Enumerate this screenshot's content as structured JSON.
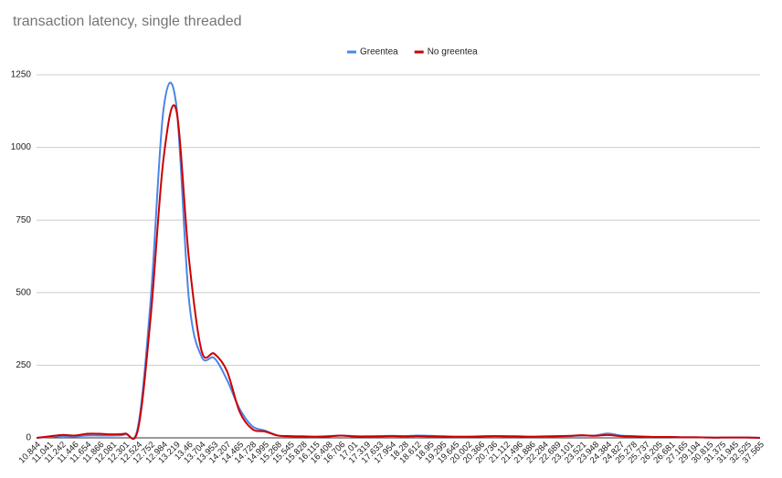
{
  "chart_data": {
    "type": "line",
    "title": "transaction latency, single threaded",
    "categories": [
      "10.844",
      "11.041",
      "11.242",
      "11.446",
      "11.654",
      "11.866",
      "12.081",
      "12.301",
      "12.524",
      "12.752",
      "12.984",
      "13.219",
      "13.46",
      "13.704",
      "13.953",
      "14.207",
      "14.465",
      "14.728",
      "14.995",
      "15.268",
      "15.545",
      "15.828",
      "16.115",
      "16.408",
      "16.706",
      "17.01",
      "17.319",
      "17.633",
      "17.954",
      "18.28",
      "18.612",
      "18.95",
      "19.295",
      "19.645",
      "20.002",
      "20.366",
      "20.736",
      "21.112",
      "21.496",
      "21.886",
      "22.284",
      "22.689",
      "23.101",
      "23.521",
      "23.948",
      "24.384",
      "24.827",
      "25.278",
      "25.737",
      "26.205",
      "26.681",
      "27.165",
      "29.194",
      "30.815",
      "31.375",
      "31.945",
      "32.525",
      "37.565"
    ],
    "series": [
      {
        "name": "Greentea",
        "color": "#4a86e8",
        "values": [
          0,
          3,
          6,
          5,
          8,
          8,
          8,
          12,
          40,
          480,
          1130,
          1150,
          480,
          280,
          275,
          200,
          100,
          40,
          25,
          8,
          5,
          5,
          4,
          6,
          8,
          6,
          5,
          6,
          7,
          6,
          8,
          7,
          5,
          4,
          4,
          5,
          6,
          6,
          5,
          4,
          4,
          5,
          6,
          8,
          8,
          15,
          8,
          6,
          4,
          3,
          3,
          2,
          2,
          1,
          1,
          1,
          1,
          0
        ]
      },
      {
        "name": "No greentea",
        "color": "#cc0000",
        "values": [
          0,
          5,
          10,
          8,
          14,
          14,
          12,
          15,
          30,
          420,
          960,
          1130,
          620,
          300,
          290,
          230,
          90,
          30,
          22,
          8,
          6,
          5,
          4,
          5,
          8,
          5,
          5,
          5,
          6,
          5,
          6,
          5,
          5,
          4,
          4,
          5,
          6,
          5,
          5,
          4,
          5,
          6,
          7,
          9,
          7,
          10,
          6,
          5,
          4,
          3,
          3,
          2,
          2,
          1,
          1,
          1,
          1,
          0
        ]
      }
    ],
    "ylim": [
      0,
      1250
    ],
    "yticks": [
      0,
      250,
      500,
      750,
      1000,
      1250
    ],
    "grid": true,
    "legend": "top"
  }
}
